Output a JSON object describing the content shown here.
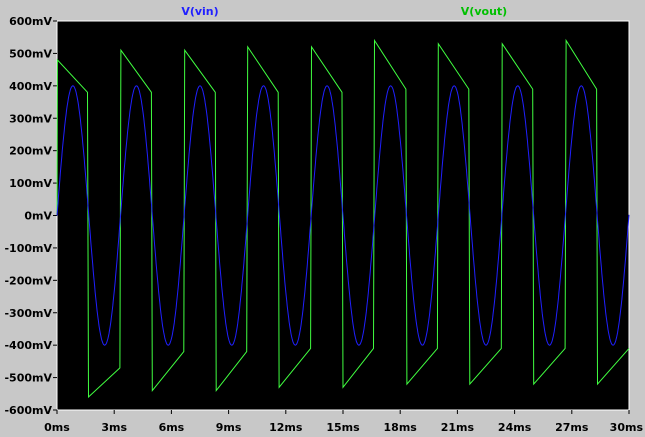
{
  "chart_data": {
    "type": "line",
    "title": "",
    "xlabel": "",
    "ylabel": "",
    "xlim": [
      0,
      30
    ],
    "ylim": [
      -600,
      600
    ],
    "x_ticks": [
      {
        "value": 0,
        "label": "0ms"
      },
      {
        "value": 3,
        "label": "3ms"
      },
      {
        "value": 6,
        "label": "6ms"
      },
      {
        "value": 9,
        "label": "9ms"
      },
      {
        "value": 12,
        "label": "12ms"
      },
      {
        "value": 15,
        "label": "15ms"
      },
      {
        "value": 18,
        "label": "18ms"
      },
      {
        "value": 21,
        "label": "21ms"
      },
      {
        "value": 24,
        "label": "24ms"
      },
      {
        "value": 27,
        "label": "27ms"
      },
      {
        "value": 30,
        "label": "30ms"
      }
    ],
    "y_ticks": [
      {
        "value": 600,
        "label": "600mV"
      },
      {
        "value": 500,
        "label": "500mV"
      },
      {
        "value": 400,
        "label": "400mV"
      },
      {
        "value": 300,
        "label": "300mV"
      },
      {
        "value": 200,
        "label": "200mV"
      },
      {
        "value": 100,
        "label": "100mV"
      },
      {
        "value": 0,
        "label": "0mV"
      },
      {
        "value": -100,
        "label": "-100mV"
      },
      {
        "value": -200,
        "label": "-200mV"
      },
      {
        "value": -300,
        "label": "-300mV"
      },
      {
        "value": -400,
        "label": "-400mV"
      },
      {
        "value": -500,
        "label": "-500mV"
      },
      {
        "value": -600,
        "label": "-600mV"
      }
    ],
    "grid": false,
    "legend_position": "top",
    "series": [
      {
        "name": "V(vin)",
        "color": "#2020ff",
        "kind": "sine",
        "amplitude": 400,
        "period": 3.333,
        "phase_start": 0
      },
      {
        "name": "V(vout)",
        "color": "#40ff40",
        "kind": "clipped-square",
        "period": 3.333,
        "points": [
          [
            0,
            0
          ],
          [
            0.02,
            480
          ],
          [
            1.6,
            380
          ],
          [
            1.65,
            -560
          ],
          [
            3.3,
            -470
          ],
          [
            3.35,
            510
          ],
          [
            4.95,
            380
          ],
          [
            5.0,
            -540
          ],
          [
            6.65,
            -420
          ],
          [
            6.7,
            510
          ],
          [
            8.3,
            380
          ],
          [
            8.35,
            -540
          ],
          [
            9.95,
            -420
          ],
          [
            10.0,
            520
          ],
          [
            11.6,
            380
          ],
          [
            11.65,
            -530
          ],
          [
            13.3,
            -410
          ],
          [
            13.35,
            520
          ],
          [
            14.95,
            380
          ],
          [
            15.0,
            -530
          ],
          [
            16.6,
            -410
          ],
          [
            16.65,
            540
          ],
          [
            18.3,
            390
          ],
          [
            18.35,
            -520
          ],
          [
            19.95,
            -410
          ],
          [
            20.0,
            530
          ],
          [
            21.6,
            390
          ],
          [
            21.65,
            -520
          ],
          [
            23.3,
            -410
          ],
          [
            23.35,
            530
          ],
          [
            24.95,
            390
          ],
          [
            25.0,
            -520
          ],
          [
            26.65,
            -410
          ],
          [
            26.7,
            540
          ],
          [
            28.3,
            390
          ],
          [
            28.35,
            -520
          ],
          [
            30.0,
            -410
          ]
        ]
      }
    ]
  },
  "colors": {
    "background": "#000000",
    "frame": "#c8c8c8",
    "axis": "#ffffff"
  }
}
